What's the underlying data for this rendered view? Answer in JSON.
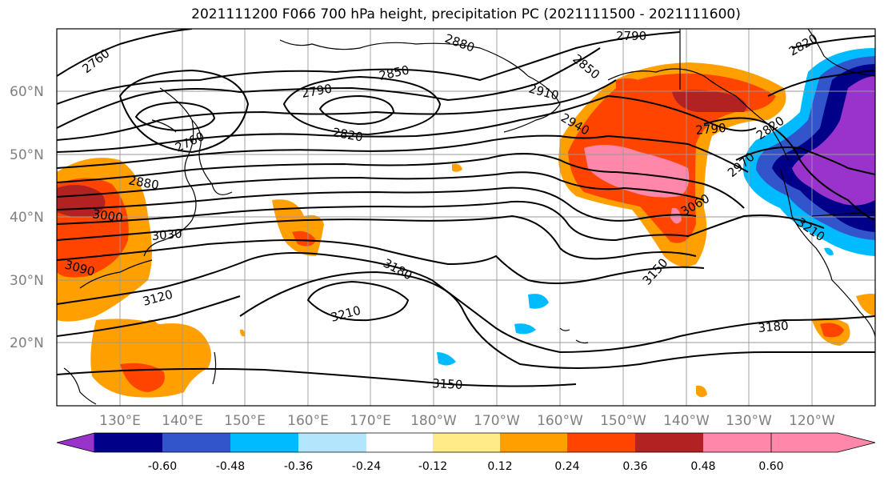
{
  "title": "2021111200 F066 700 hPa height, precipitation PC (2021111500 - 2021111600)",
  "map": {
    "lon_labels": [
      "130°E",
      "140°E",
      "150°E",
      "160°E",
      "170°E",
      "180°W",
      "170°W",
      "160°W",
      "150°W",
      "140°W",
      "130°W",
      "120°W"
    ],
    "lat_labels": [
      "60°N",
      "50°N",
      "40°N",
      "30°N",
      "20°N"
    ],
    "contour_labels": [
      "2760",
      "2880",
      "2850",
      "2790",
      "2910",
      "2820",
      "2760",
      "2820",
      "2880",
      "3000",
      "3030",
      "3090",
      "3120",
      "3180",
      "3210",
      "3150",
      "3060",
      "3150",
      "3180",
      "2790",
      "2820",
      "2940",
      "2850",
      "2790",
      "2970",
      "3210"
    ]
  },
  "colorbar": {
    "colors": [
      "#9933cc",
      "#000088",
      "#3355cc",
      "#00bbff",
      "#b3e5fc",
      "#ffffff",
      "#ffeb88",
      "#ffa000",
      "#ff4400",
      "#b22222",
      "#ff88aa"
    ],
    "ticks": [
      "-0.60",
      "-0.48",
      "-0.36",
      "-0.24",
      "-0.12",
      "0.12",
      "0.24",
      "0.36",
      "0.48",
      "0.60"
    ]
  }
}
